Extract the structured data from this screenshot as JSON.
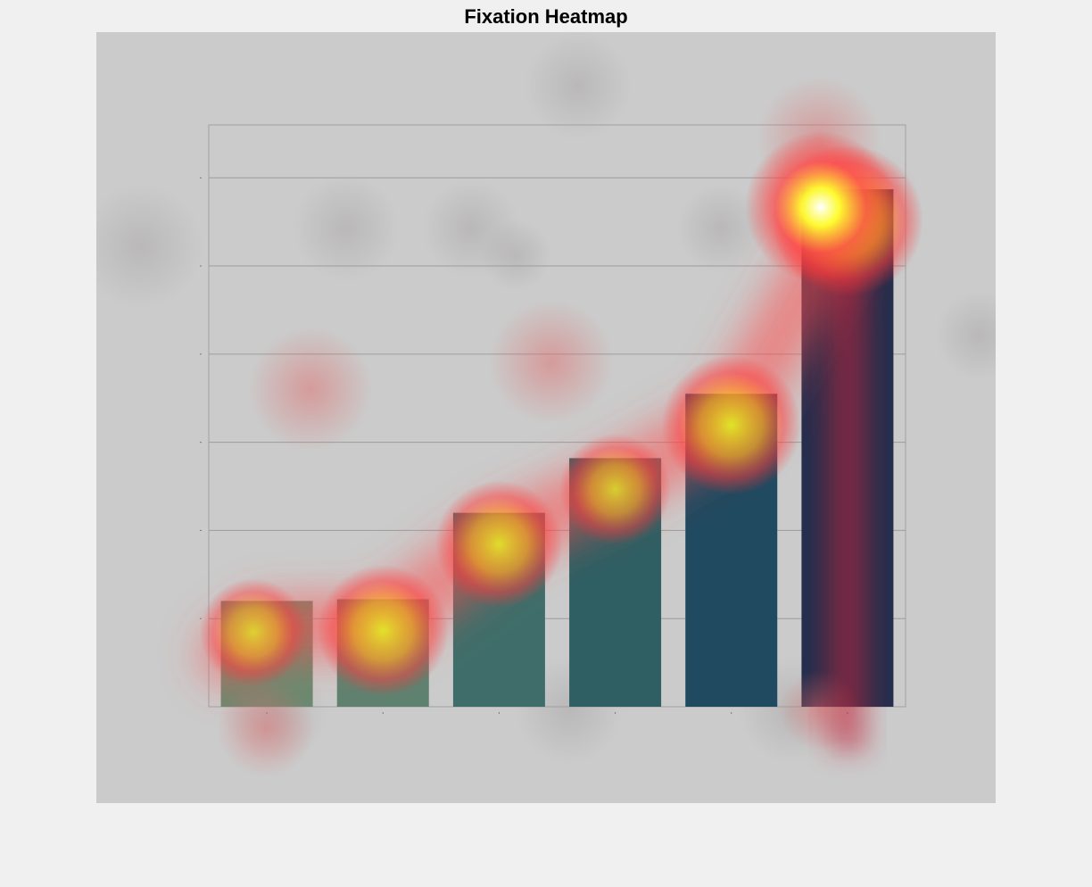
{
  "page": {
    "title": "Fixation Heatmap"
  },
  "chart_data": {
    "type": "bar",
    "title": "",
    "xlabel": "",
    "ylabel": "",
    "categories": [
      "",
      "",
      "",
      "",
      "",
      ""
    ],
    "series": [
      {
        "values": [
          1.2,
          1.22,
          2.2,
          2.82,
          3.55,
          5.87
        ]
      }
    ],
    "ylim": [
      0,
      6.6
    ],
    "yticks": [
      1,
      2,
      3,
      4,
      5,
      6
    ],
    "grid": true,
    "legend": "none",
    "bar_colors": [
      "#6a8a70",
      "#5f8270",
      "#3f6e6a",
      "#2f5f63",
      "#204a60",
      "#252e4c"
    ],
    "background_color": "#cbcbcb"
  },
  "heatmap": {
    "colormap": [
      "#ff5a5a",
      "#ffff00",
      "#ffffff"
    ],
    "note_fixations_per_bar": [
      0.45,
      0.75,
      0.7,
      0.5,
      0.85,
      1.0
    ]
  }
}
